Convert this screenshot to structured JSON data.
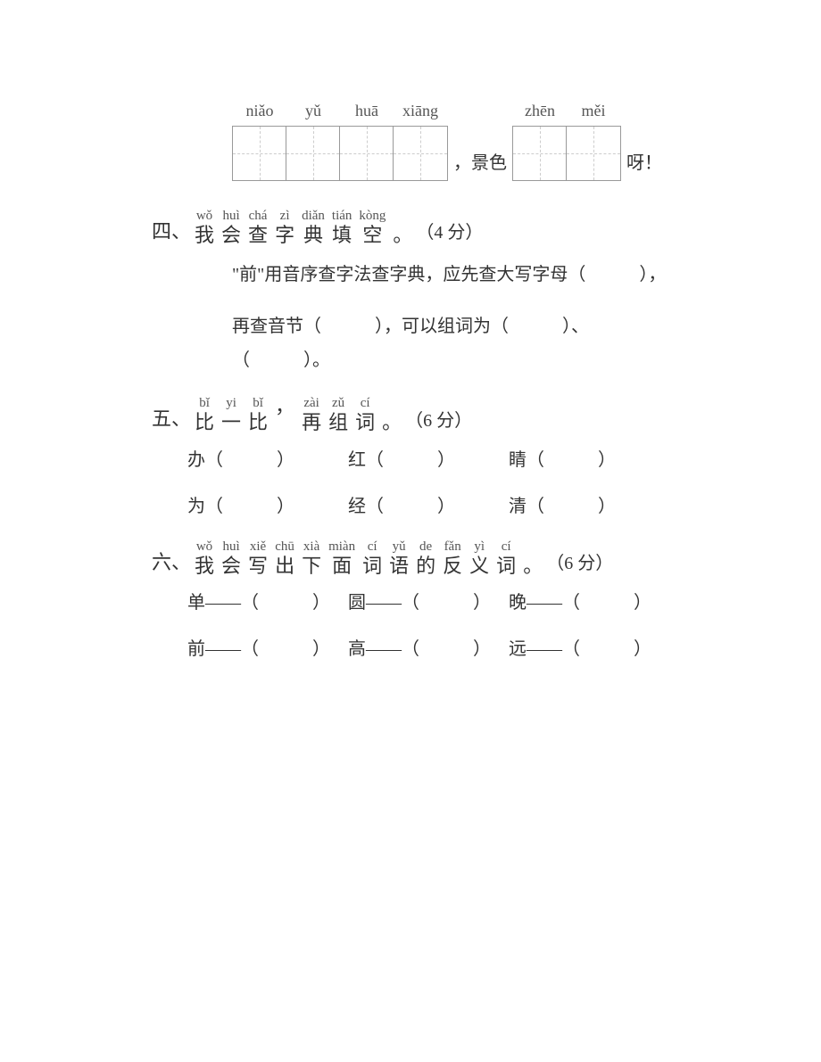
{
  "top_row": {
    "group1_pinyin": [
      "niǎo",
      "yǔ",
      "huā",
      "xiāng"
    ],
    "group2_pinyin": [
      "zhēn",
      "měi"
    ],
    "text_before_group2": "，景色",
    "text_after_group2": "呀！"
  },
  "section4": {
    "number": "四、",
    "pinyin": [
      "wǒ",
      "huì",
      "chá",
      "zì",
      "diǎn",
      "tián",
      "kòng"
    ],
    "hanzi": [
      "我",
      "会",
      "查",
      "字",
      "典",
      "填",
      "空"
    ],
    "punctuation": "。",
    "points": "（4 分）",
    "line1": "\"前\"用音序查字法查字典，应先查大写字母（　　　），",
    "line2": "再查音节（　　　），可以组词为（　　　）、（　　　）。"
  },
  "section5": {
    "number": "五、",
    "pinyin": [
      "bǐ",
      "yi",
      "bǐ",
      "",
      "zài",
      "zǔ",
      "cí"
    ],
    "hanzi": [
      "比",
      "一",
      "比",
      "，",
      "再",
      "组",
      "词"
    ],
    "punctuation": "。",
    "points": "（6 分）",
    "row1": [
      "办（　　　）",
      "红（　　　）",
      "睛（　　　）"
    ],
    "row2": [
      "为（　　　）",
      "经（　　　）",
      "清（　　　）"
    ]
  },
  "section6": {
    "number": "六、",
    "pinyin": [
      "wǒ",
      "huì",
      "xiě",
      "chū",
      "xià",
      "miàn",
      "cí",
      "yǔ",
      "de",
      "fǎn",
      "yì",
      "cí"
    ],
    "hanzi": [
      "我",
      "会",
      "写",
      "出",
      "下",
      "面",
      "词",
      "语",
      "的",
      "反",
      "义",
      "词"
    ],
    "punctuation": "。",
    "points": "（6 分）",
    "row1": [
      "单——（　　　）",
      "圆——（　　　）",
      "晚——（　　　）"
    ],
    "row2": [
      "前——（　　　）",
      "高——（　　　）",
      "远——（　　　）"
    ]
  }
}
